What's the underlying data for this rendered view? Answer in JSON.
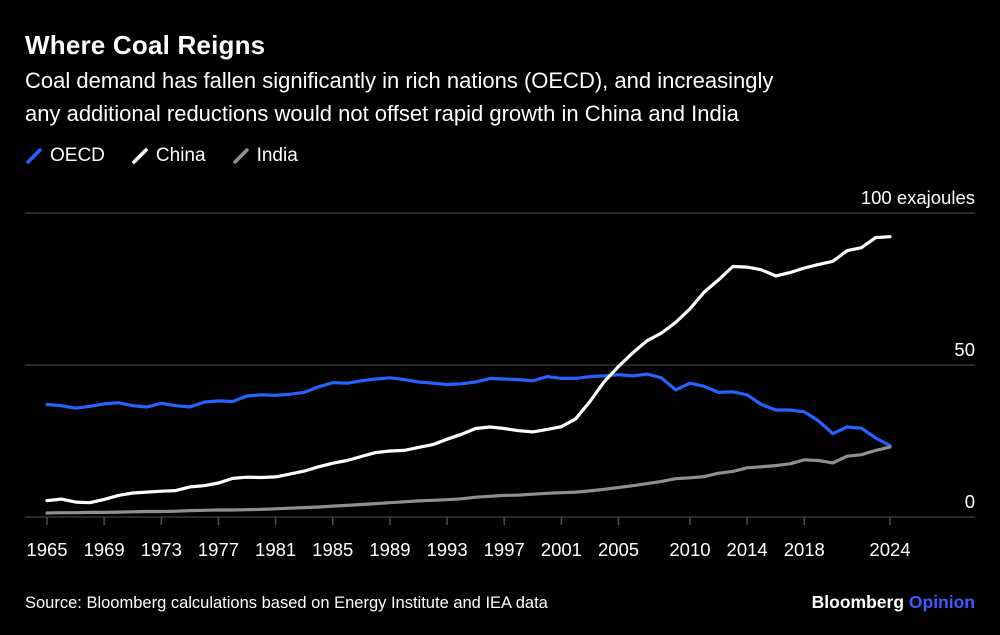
{
  "header": {
    "title": "Where Coal Reigns",
    "subtitle_line1": "Coal demand has fallen significantly in rich nations (OECD), and increasingly",
    "subtitle_line2": "any additional reductions would not offset rapid growth in China and India"
  },
  "legend": [
    {
      "label": "OECD",
      "color": "#2563ff"
    },
    {
      "label": "China",
      "color": "#ffffff"
    },
    {
      "label": "India",
      "color": "#8f8f8f"
    }
  ],
  "chart_data": {
    "type": "line",
    "title": "Where Coal Reigns",
    "unit_label": "100 exajoules",
    "xlabel": "",
    "ylabel": "exajoules",
    "ylim": [
      0,
      100
    ],
    "grid_color": "#4d4d4d",
    "axis_text_color": "#ffffff",
    "y_gridlines": [
      {
        "value": 100,
        "label": "100 exajoules"
      },
      {
        "value": 50,
        "label": "50"
      },
      {
        "value": 0,
        "label": "0"
      }
    ],
    "x_ticks": [
      1965,
      1969,
      1973,
      1977,
      1981,
      1985,
      1989,
      1993,
      1997,
      2001,
      2005,
      2010,
      2014,
      2018,
      2024
    ],
    "x": [
      1965,
      1966,
      1967,
      1968,
      1969,
      1970,
      1971,
      1972,
      1973,
      1974,
      1975,
      1976,
      1977,
      1978,
      1979,
      1980,
      1981,
      1982,
      1983,
      1984,
      1985,
      1986,
      1987,
      1988,
      1989,
      1990,
      1991,
      1992,
      1993,
      1994,
      1995,
      1996,
      1997,
      1998,
      1999,
      2000,
      2001,
      2002,
      2003,
      2004,
      2005,
      2006,
      2007,
      2008,
      2009,
      2010,
      2011,
      2012,
      2013,
      2014,
      2015,
      2016,
      2017,
      2018,
      2019,
      2020,
      2021,
      2022,
      2023,
      2024
    ],
    "series": [
      {
        "name": "OECD",
        "color": "#2563ff",
        "values": [
          37.0,
          36.6,
          35.8,
          36.4,
          37.2,
          37.6,
          36.6,
          36.2,
          37.4,
          36.6,
          36.2,
          37.8,
          38.2,
          38.0,
          39.8,
          40.2,
          40.0,
          40.4,
          41.0,
          42.8,
          44.2,
          44.0,
          44.8,
          45.4,
          45.8,
          45.2,
          44.4,
          44.0,
          43.6,
          43.8,
          44.4,
          45.6,
          45.4,
          45.2,
          44.8,
          46.2,
          45.6,
          45.6,
          46.2,
          46.4,
          46.8,
          46.4,
          47.0,
          45.8,
          41.8,
          44.0,
          43.0,
          41.0,
          41.2,
          40.2,
          37.0,
          35.2,
          35.2,
          34.6,
          31.6,
          27.4,
          29.6,
          29.2,
          26.0,
          23.5
        ]
      },
      {
        "name": "China",
        "color": "#ffffff",
        "values": [
          5.4,
          5.9,
          4.9,
          4.7,
          5.8,
          7.1,
          7.9,
          8.2,
          8.5,
          8.7,
          9.9,
          10.3,
          11.2,
          12.7,
          13.1,
          13.0,
          13.2,
          14.1,
          15.1,
          16.5,
          17.7,
          18.6,
          19.9,
          21.2,
          21.7,
          21.9,
          22.9,
          23.8,
          25.6,
          27.2,
          29.1,
          29.6,
          29.1,
          28.4,
          28.0,
          28.8,
          29.7,
          32.3,
          38.0,
          44.5,
          49.5,
          54.0,
          58.0,
          60.5,
          64.0,
          68.5,
          74.0,
          78.0,
          82.4,
          82.2,
          81.3,
          79.3,
          80.4,
          81.9,
          83.1,
          84.1,
          87.6,
          88.6,
          91.9,
          92.2
        ]
      },
      {
        "name": "India",
        "color": "#8f8f8f",
        "values": [
          1.3,
          1.4,
          1.4,
          1.5,
          1.5,
          1.6,
          1.7,
          1.8,
          1.8,
          1.9,
          2.1,
          2.2,
          2.3,
          2.3,
          2.4,
          2.5,
          2.7,
          2.9,
          3.1,
          3.3,
          3.6,
          3.8,
          4.1,
          4.4,
          4.7,
          5.0,
          5.3,
          5.5,
          5.7,
          6.0,
          6.5,
          6.8,
          7.1,
          7.2,
          7.5,
          7.8,
          8.0,
          8.2,
          8.6,
          9.1,
          9.7,
          10.3,
          11.0,
          11.7,
          12.6,
          12.9,
          13.3,
          14.4,
          15.0,
          16.2,
          16.5,
          16.9,
          17.5,
          18.8,
          18.6,
          17.8,
          20.0,
          20.5,
          21.9,
          23.0
        ]
      }
    ]
  },
  "footer": {
    "source": "Source: Bloomberg calculations based on Energy Institute and IEA data",
    "brand": "Bloomberg",
    "brand_suffix": "Opinion"
  },
  "colors": {
    "background": "#000000",
    "accent_blue": "#2563ff",
    "opinion_blue": "#3d5afe",
    "grid": "#4d4d4d",
    "india_gray": "#8f8f8f"
  }
}
